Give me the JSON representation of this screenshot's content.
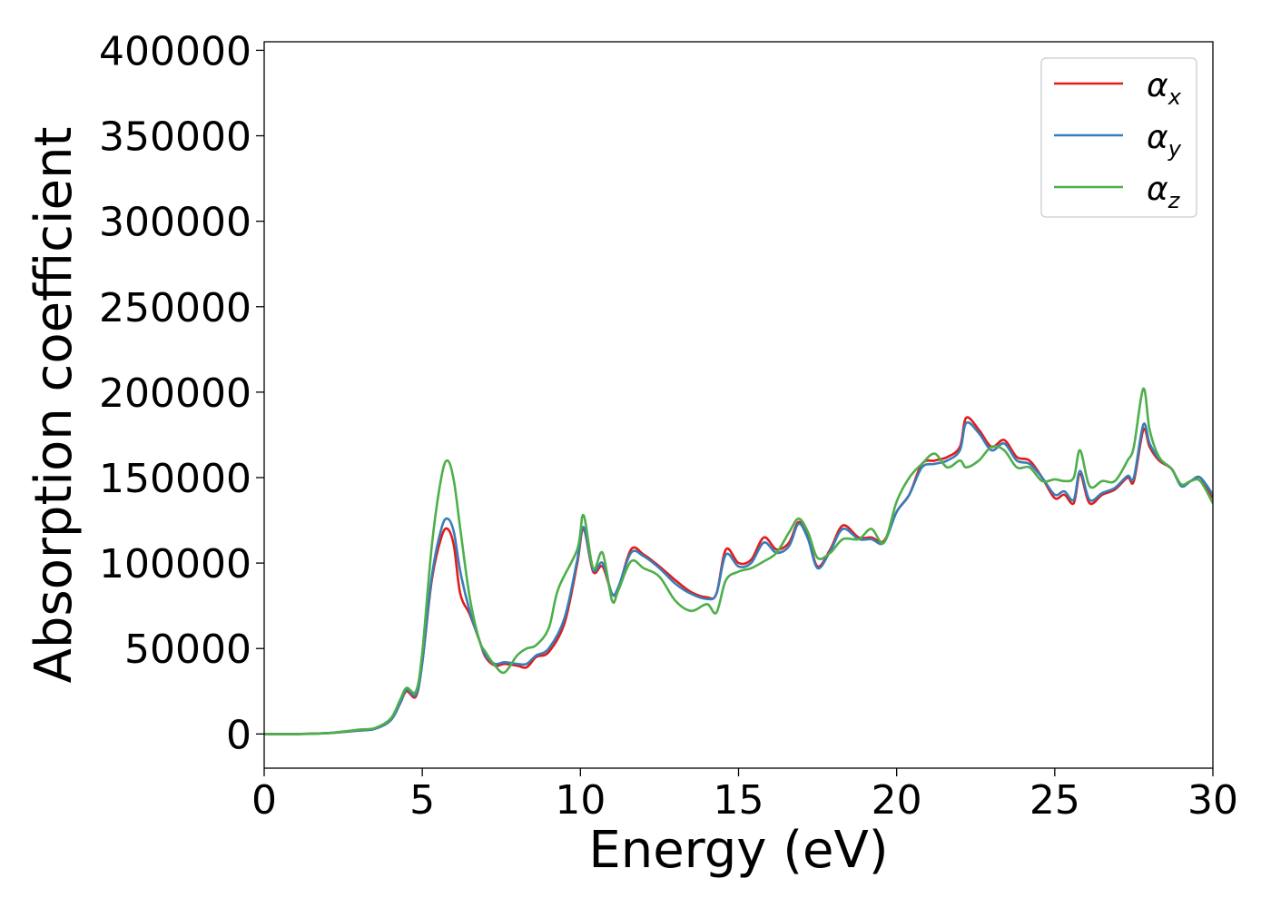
{
  "chart_data": {
    "type": "line",
    "xlabel": "Energy (eV)",
    "ylabel": "Absorption coefficient",
    "xlim": [
      0,
      30
    ],
    "ylim": [
      -20000,
      405000
    ],
    "xticks": [
      0,
      5,
      10,
      15,
      20,
      25,
      30
    ],
    "xtick_labels": [
      "0",
      "5",
      "10",
      "15",
      "20",
      "25",
      "30"
    ],
    "yticks": [
      0,
      50000,
      100000,
      150000,
      200000,
      250000,
      300000,
      350000,
      400000
    ],
    "ytick_labels": [
      "0",
      "50000",
      "100000",
      "150000",
      "200000",
      "250000",
      "300000",
      "350000",
      "400000"
    ],
    "grid": false,
    "legend_position": "top-right",
    "series": [
      {
        "name": "α_x",
        "label_main": "α",
        "label_sub": "x",
        "color": "#e41a1c",
        "x": [
          0,
          1,
          2,
          3,
          3.5,
          4,
          4.3,
          4.5,
          4.8,
          5.0,
          5.3,
          5.6,
          5.8,
          6.0,
          6.2,
          6.5,
          6.8,
          7.0,
          7.3,
          7.6,
          8.0,
          8.3,
          8.6,
          9.0,
          9.5,
          9.9,
          10.1,
          10.4,
          10.7,
          11.0,
          11.2,
          11.6,
          12.0,
          12.5,
          13.0,
          13.5,
          14.0,
          14.3,
          14.6,
          15.0,
          15.4,
          15.8,
          16.2,
          16.6,
          16.9,
          17.2,
          17.5,
          17.9,
          18.3,
          18.8,
          19.2,
          19.6,
          20.0,
          20.4,
          20.8,
          21.2,
          21.6,
          22.0,
          22.2,
          22.6,
          23.0,
          23.4,
          23.8,
          24.2,
          24.6,
          25.0,
          25.3,
          25.6,
          25.8,
          26.1,
          26.5,
          26.9,
          27.3,
          27.5,
          27.8,
          28.0,
          28.3,
          28.7,
          29.0,
          29.3,
          29.6,
          30.0
        ],
        "y": [
          0,
          0,
          500,
          2000,
          3000,
          8000,
          18000,
          25000,
          22000,
          42000,
          90000,
          115000,
          120000,
          110000,
          82000,
          70000,
          55000,
          45000,
          40000,
          41000,
          40000,
          39000,
          45000,
          48000,
          65000,
          100000,
          120000,
          95000,
          98000,
          82000,
          85000,
          108000,
          105000,
          98000,
          90000,
          83000,
          80000,
          82000,
          108000,
          100000,
          102000,
          115000,
          108000,
          112000,
          124000,
          115000,
          98000,
          108000,
          122000,
          115000,
          115000,
          113000,
          130000,
          140000,
          158000,
          160000,
          162000,
          168000,
          185000,
          178000,
          168000,
          172000,
          162000,
          160000,
          150000,
          138000,
          140000,
          135000,
          152000,
          135000,
          140000,
          143000,
          150000,
          148000,
          178000,
          168000,
          160000,
          155000,
          145000,
          148000,
          150000,
          138000
        ]
      },
      {
        "name": "α_y",
        "label_main": "α",
        "label_sub": "y",
        "color": "#377eb8",
        "x": [
          0,
          1,
          2,
          3,
          3.5,
          4,
          4.3,
          4.5,
          4.8,
          5.0,
          5.3,
          5.6,
          5.8,
          6.0,
          6.2,
          6.5,
          6.8,
          7.0,
          7.3,
          7.6,
          8.0,
          8.3,
          8.6,
          9.0,
          9.5,
          9.9,
          10.1,
          10.4,
          10.7,
          11.0,
          11.2,
          11.6,
          12.0,
          12.5,
          13.0,
          13.5,
          14.0,
          14.3,
          14.6,
          15.0,
          15.4,
          15.8,
          16.2,
          16.6,
          16.9,
          17.2,
          17.5,
          17.9,
          18.3,
          18.8,
          19.2,
          19.6,
          20.0,
          20.4,
          20.8,
          21.2,
          21.6,
          22.0,
          22.2,
          22.6,
          23.0,
          23.4,
          23.8,
          24.2,
          24.6,
          25.0,
          25.3,
          25.6,
          25.8,
          26.1,
          26.5,
          26.9,
          27.3,
          27.5,
          27.8,
          28.0,
          28.3,
          28.7,
          29.0,
          29.3,
          29.6,
          30.0
        ],
        "y": [
          0,
          0,
          500,
          2000,
          3000,
          8000,
          18000,
          26000,
          23000,
          42000,
          92000,
          120000,
          126000,
          118000,
          95000,
          72000,
          55000,
          46000,
          41000,
          42000,
          41000,
          41000,
          46000,
          50000,
          68000,
          102000,
          121000,
          96000,
          100000,
          82000,
          86000,
          106000,
          104000,
          97000,
          88000,
          82000,
          79000,
          82000,
          105000,
          98000,
          100000,
          112000,
          106000,
          110000,
          123000,
          114000,
          97000,
          107000,
          120000,
          114000,
          114000,
          112000,
          130000,
          140000,
          156000,
          158000,
          160000,
          166000,
          182000,
          176000,
          166000,
          170000,
          160000,
          158000,
          150000,
          140000,
          142000,
          137000,
          154000,
          137000,
          141000,
          144000,
          151000,
          150000,
          181000,
          170000,
          161000,
          155000,
          145000,
          148000,
          150000,
          140000
        ]
      },
      {
        "name": "α_z",
        "label_main": "α",
        "label_sub": "z",
        "color": "#4daf4a",
        "x": [
          0,
          1,
          2,
          3,
          3.5,
          4,
          4.3,
          4.5,
          4.8,
          5.0,
          5.3,
          5.6,
          5.8,
          6.0,
          6.2,
          6.5,
          6.8,
          7.0,
          7.3,
          7.6,
          8.0,
          8.3,
          8.6,
          9.0,
          9.3,
          9.9,
          10.1,
          10.4,
          10.7,
          11.0,
          11.2,
          11.6,
          12.0,
          12.5,
          13.0,
          13.5,
          14.0,
          14.3,
          14.6,
          15.0,
          15.4,
          15.8,
          16.2,
          16.6,
          16.9,
          17.2,
          17.5,
          17.9,
          18.3,
          18.8,
          19.2,
          19.6,
          20.0,
          20.4,
          20.8,
          21.2,
          21.6,
          22.0,
          22.2,
          22.6,
          23.0,
          23.4,
          23.8,
          24.2,
          24.6,
          25.0,
          25.3,
          25.6,
          25.8,
          26.1,
          26.5,
          26.9,
          27.3,
          27.5,
          27.8,
          28.0,
          28.3,
          28.7,
          29.0,
          29.3,
          29.6,
          30.0
        ],
        "y": [
          0,
          0,
          500,
          2500,
          3500,
          9000,
          20000,
          27000,
          25000,
          48000,
          110000,
          150000,
          160000,
          148000,
          120000,
          80000,
          55000,
          48000,
          40000,
          36000,
          46000,
          50000,
          52000,
          62000,
          85000,
          108000,
          128000,
          97000,
          106000,
          78000,
          84000,
          101000,
          97000,
          92000,
          78000,
          72000,
          76000,
          71000,
          90000,
          95000,
          97000,
          101000,
          106000,
          118000,
          126000,
          118000,
          103000,
          106000,
          114000,
          114000,
          120000,
          112000,
          136000,
          150000,
          158000,
          164000,
          156000,
          160000,
          156000,
          160000,
          168000,
          166000,
          156000,
          156000,
          148000,
          149000,
          148000,
          150000,
          166000,
          145000,
          148000,
          148000,
          160000,
          168000,
          202000,
          178000,
          162000,
          155000,
          146000,
          148000,
          148000,
          135000
        ]
      }
    ]
  }
}
